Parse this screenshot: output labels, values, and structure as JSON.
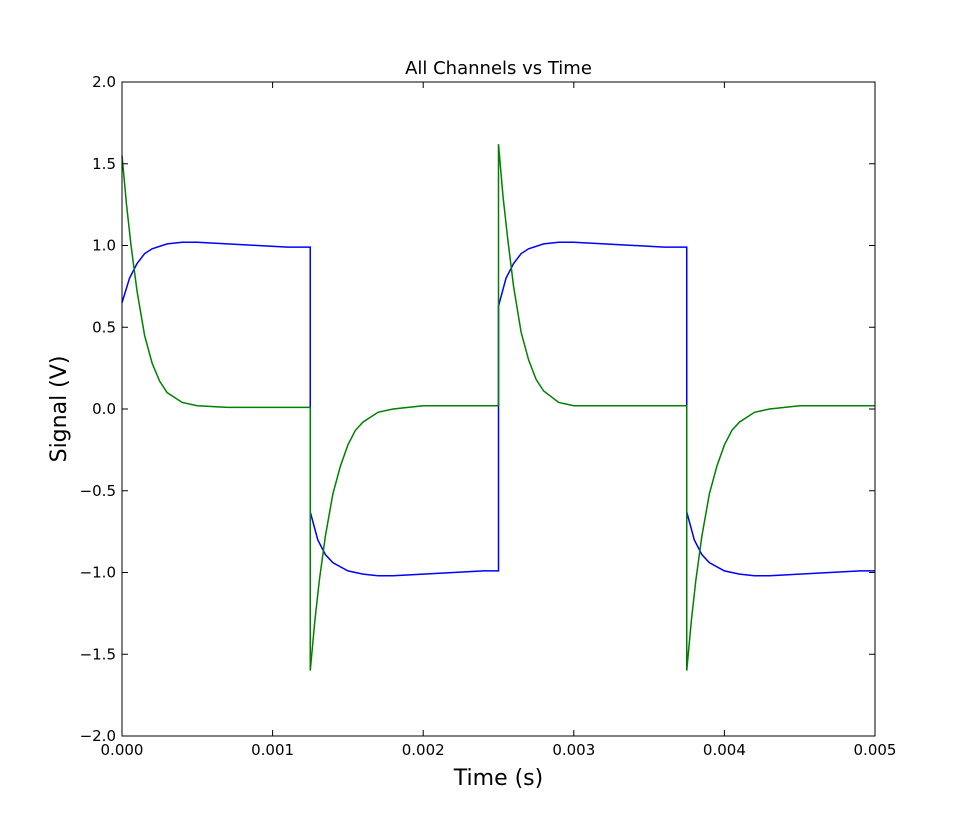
{
  "chart_data": {
    "type": "line",
    "title": "All Channels vs Time",
    "xlabel": "Time (s)",
    "ylabel": "Signal (V)",
    "xlim": [
      0,
      0.005
    ],
    "ylim": [
      -2.0,
      2.0
    ],
    "xticks": [
      0.0,
      0.001,
      0.002,
      0.003,
      0.004,
      0.005
    ],
    "xtick_labels": [
      "0.000",
      "0.001",
      "0.002",
      "0.003",
      "0.004",
      "0.005"
    ],
    "yticks": [
      -2.0,
      -1.5,
      -1.0,
      -0.5,
      0.0,
      0.5,
      1.0,
      1.5,
      2.0
    ],
    "ytick_labels": [
      "−2.0",
      "−1.5",
      "−1.0",
      "−0.5",
      "0.0",
      "0.5",
      "1.0",
      "1.5",
      "2.0"
    ],
    "grid": false,
    "legend": false,
    "series": [
      {
        "color": "#0000ff",
        "x": [
          0,
          5e-05,
          0.0001,
          0.00015,
          0.0002,
          0.0003,
          0.0004,
          0.0005,
          0.0007,
          0.0009,
          0.0011,
          0.00125,
          0.00125,
          0.0013,
          0.00135,
          0.0014,
          0.0015,
          0.0016,
          0.0017,
          0.0018,
          0.002,
          0.0022,
          0.0024,
          0.0025,
          0.0025,
          0.00255,
          0.0026,
          0.00265,
          0.0027,
          0.0028,
          0.0029,
          0.003,
          0.0032,
          0.0034,
          0.0036,
          0.00375,
          0.00375,
          0.0038,
          0.00385,
          0.0039,
          0.004,
          0.0041,
          0.0042,
          0.0043,
          0.0045,
          0.0047,
          0.0049,
          0.005
        ],
        "y": [
          0.65,
          0.8,
          0.89,
          0.95,
          0.98,
          1.01,
          1.02,
          1.02,
          1.01,
          1.0,
          0.99,
          0.99,
          -0.63,
          -0.8,
          -0.89,
          -0.94,
          -0.99,
          -1.01,
          -1.02,
          -1.02,
          -1.01,
          -1.0,
          -0.99,
          -0.99,
          0.63,
          0.8,
          0.89,
          0.95,
          0.98,
          1.01,
          1.02,
          1.02,
          1.01,
          1.0,
          0.99,
          0.99,
          -0.63,
          -0.8,
          -0.89,
          -0.94,
          -0.99,
          -1.01,
          -1.02,
          -1.02,
          -1.01,
          -1.0,
          -0.99,
          -0.99
        ]
      },
      {
        "color": "#008000",
        "x": [
          0,
          3e-05,
          6e-05,
          0.0001,
          0.00015,
          0.0002,
          0.00025,
          0.0003,
          0.0004,
          0.0005,
          0.0007,
          0.0009,
          0.0011,
          0.00125,
          0.00125,
          0.00128,
          0.00131,
          0.00135,
          0.0014,
          0.00145,
          0.0015,
          0.00155,
          0.0016,
          0.0017,
          0.0018,
          0.002,
          0.0022,
          0.0024,
          0.0025,
          0.0025,
          0.00253,
          0.00256,
          0.0026,
          0.00265,
          0.0027,
          0.00275,
          0.0028,
          0.0029,
          0.003,
          0.0032,
          0.0034,
          0.0036,
          0.00375,
          0.00375,
          0.00378,
          0.00381,
          0.00385,
          0.0039,
          0.00395,
          0.004,
          0.00405,
          0.0041,
          0.0042,
          0.0043,
          0.0045,
          0.0047,
          0.0049,
          0.005
        ],
        "y": [
          1.55,
          1.25,
          1.0,
          0.72,
          0.45,
          0.28,
          0.17,
          0.1,
          0.04,
          0.02,
          0.01,
          0.01,
          0.01,
          0.01,
          -1.6,
          -1.3,
          -1.05,
          -0.78,
          -0.52,
          -0.35,
          -0.22,
          -0.13,
          -0.08,
          -0.02,
          0.0,
          0.02,
          0.02,
          0.02,
          0.02,
          1.62,
          1.3,
          1.05,
          0.75,
          0.47,
          0.3,
          0.18,
          0.11,
          0.04,
          0.02,
          0.02,
          0.02,
          0.02,
          0.02,
          -1.6,
          -1.3,
          -1.05,
          -0.78,
          -0.52,
          -0.35,
          -0.22,
          -0.13,
          -0.08,
          -0.02,
          0.0,
          0.02,
          0.02,
          0.02,
          0.02
        ]
      }
    ]
  }
}
